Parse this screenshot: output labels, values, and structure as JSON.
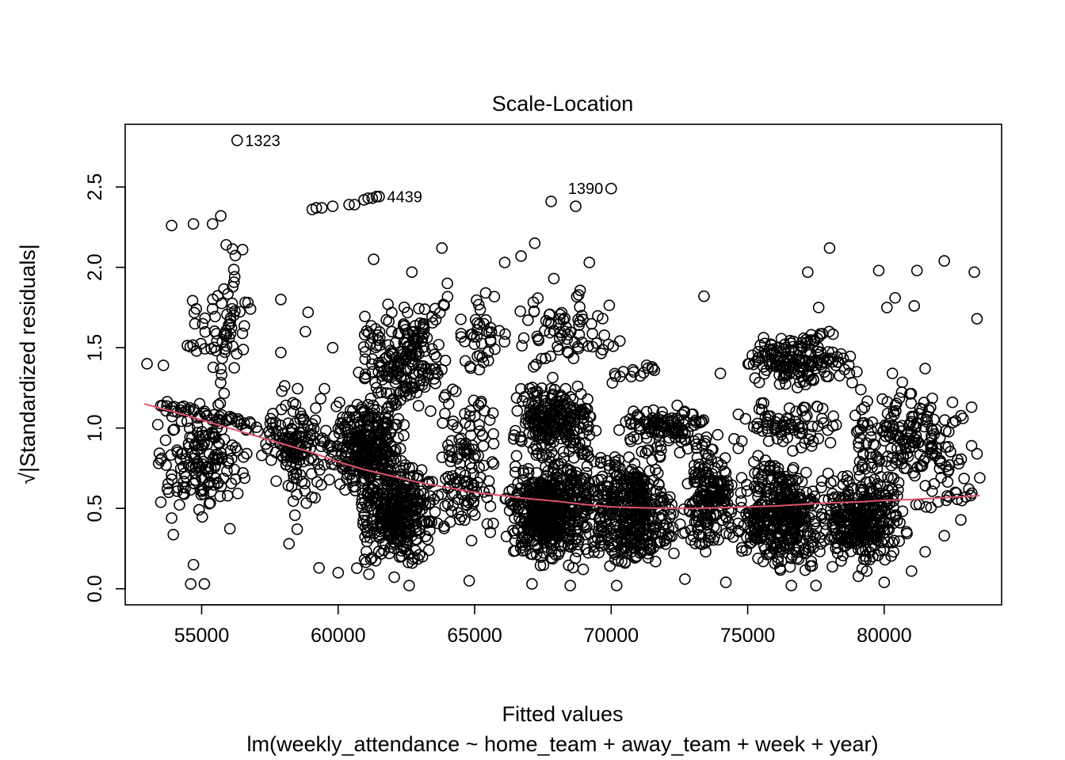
{
  "chart_data": {
    "type": "scatter",
    "title": "Scale-Location",
    "xlabel": "Fitted values",
    "ylabel": "√|Standardized residuals|",
    "subtitle": "lm(weekly_attendance ~ home_team + away_team + week + year)",
    "xlim": [
      52200,
      84300
    ],
    "ylim": [
      -0.1,
      2.89
    ],
    "x_ticks": [
      55000,
      60000,
      65000,
      70000,
      75000,
      80000
    ],
    "y_ticks": [
      0.0,
      0.5,
      1.0,
      1.5,
      2.0,
      2.5
    ],
    "x_tick_labels": [
      "55000",
      "60000",
      "65000",
      "70000",
      "75000",
      "80000"
    ],
    "y_tick_labels": [
      "0.0",
      "0.5",
      "1.0",
      "1.5",
      "2.0",
      "2.5"
    ],
    "point_color": "#000000",
    "smooth_color": "#DF536B",
    "labeled_points": [
      {
        "label": "1323",
        "x": 56300,
        "y": 2.79
      },
      {
        "label": "4439",
        "x": 61500,
        "y": 2.44
      },
      {
        "label": "1390",
        "x": 70000,
        "y": 2.49
      }
    ],
    "highlight_points": [
      [
        53900,
        2.26
      ],
      [
        54700,
        2.27
      ],
      [
        55400,
        2.27
      ],
      [
        55700,
        2.32
      ],
      [
        59050,
        2.36
      ],
      [
        59200,
        2.37
      ],
      [
        59400,
        2.37
      ],
      [
        59800,
        2.38
      ],
      [
        60400,
        2.39
      ],
      [
        60600,
        2.39
      ],
      [
        60950,
        2.42
      ],
      [
        61100,
        2.43
      ],
      [
        61250,
        2.43
      ],
      [
        61400,
        2.44
      ],
      [
        67800,
        2.41
      ],
      [
        68700,
        2.38
      ],
      [
        57900,
        1.8
      ],
      [
        55900,
        2.14
      ],
      [
        56500,
        2.11
      ],
      [
        58900,
        1.72
      ],
      [
        61300,
        2.05
      ],
      [
        62700,
        1.97
      ],
      [
        63800,
        2.12
      ],
      [
        64000,
        1.9
      ],
      [
        66100,
        2.03
      ],
      [
        66700,
        2.07
      ],
      [
        67200,
        2.15
      ],
      [
        67900,
        1.93
      ],
      [
        69200,
        2.03
      ],
      [
        73400,
        1.82
      ],
      [
        77200,
        1.97
      ],
      [
        78000,
        2.12
      ],
      [
        79800,
        1.98
      ],
      [
        81200,
        1.98
      ],
      [
        82200,
        2.04
      ],
      [
        83300,
        1.97
      ],
      [
        81100,
        1.76
      ],
      [
        80100,
        1.75
      ],
      [
        80400,
        1.81
      ],
      [
        83400,
        1.68
      ],
      [
        77600,
        1.75
      ],
      [
        53000,
        1.4
      ],
      [
        53600,
        1.39
      ],
      [
        57900,
        1.47
      ],
      [
        58800,
        1.6
      ],
      [
        59800,
        1.5
      ],
      [
        62000,
        1.18
      ],
      [
        63100,
        1.34
      ],
      [
        65500,
        1.42
      ],
      [
        66800,
        1.56
      ],
      [
        69900,
        1.52
      ],
      [
        71500,
        1.38
      ],
      [
        74000,
        1.34
      ],
      [
        75800,
        1.49
      ],
      [
        77000,
        1.5
      ],
      [
        78300,
        1.41
      ],
      [
        79000,
        1.35
      ],
      [
        80300,
        1.34
      ],
      [
        81500,
        1.37
      ],
      [
        82500,
        1.16
      ],
      [
        83200,
        1.13
      ],
      [
        53900,
        0.44
      ],
      [
        54700,
        0.15
      ],
      [
        54600,
        0.03
      ],
      [
        55100,
        0.03
      ],
      [
        58200,
        0.28
      ],
      [
        59300,
        0.13
      ],
      [
        60000,
        0.1
      ],
      [
        62600,
        0.02
      ],
      [
        64800,
        0.05
      ],
      [
        67100,
        0.03
      ],
      [
        68500,
        0.02
      ],
      [
        70200,
        0.02
      ],
      [
        72700,
        0.06
      ],
      [
        74200,
        0.04
      ],
      [
        76600,
        0.02
      ],
      [
        77500,
        0.02
      ],
      [
        80000,
        0.04
      ],
      [
        81000,
        0.11
      ],
      [
        81500,
        0.23
      ],
      [
        82200,
        0.33
      ],
      [
        82600,
        0.6
      ],
      [
        83100,
        0.62
      ],
      [
        83500,
        0.69
      ],
      [
        83200,
        0.89
      ],
      [
        83400,
        0.84
      ]
    ],
    "smooth_line": {
      "x": [
        52900,
        54000,
        55000,
        56000,
        57000,
        58000,
        59000,
        60000,
        61000,
        62000,
        63000,
        64000,
        65000,
        66000,
        67000,
        68000,
        69000,
        70000,
        71000,
        72000,
        73000,
        74000,
        75000,
        76000,
        77000,
        78000,
        79000,
        80000,
        81000,
        82000,
        83500
      ],
      "y": [
        1.15,
        1.1,
        1.05,
        1.0,
        0.95,
        0.9,
        0.85,
        0.79,
        0.74,
        0.7,
        0.66,
        0.63,
        0.6,
        0.58,
        0.56,
        0.545,
        0.525,
        0.51,
        0.505,
        0.5,
        0.5,
        0.505,
        0.51,
        0.515,
        0.525,
        0.535,
        0.54,
        0.55,
        0.555,
        0.565,
        0.58
      ]
    },
    "clusters": [
      {
        "xmin": 53200,
        "xmax": 56900,
        "ymin": 0.3,
        "ymax": 1.3,
        "n": 150,
        "seed": 11
      },
      {
        "xmin": 54200,
        "xmax": 57000,
        "ymin": 1.3,
        "ymax": 2.0,
        "n": 50,
        "seed": 12
      },
      {
        "xmin": 57000,
        "xmax": 59500,
        "ymin": 0.6,
        "ymax": 1.2,
        "n": 90,
        "seed": 13
      },
      {
        "xmin": 57500,
        "xmax": 60000,
        "ymin": 0.2,
        "ymax": 1.6,
        "n": 60,
        "seed": 14
      },
      {
        "xmin": 59500,
        "xmax": 62500,
        "ymin": 0.5,
        "ymax": 1.25,
        "n": 300,
        "seed": 15
      },
      {
        "xmin": 60500,
        "xmax": 63800,
        "ymin": 0.05,
        "ymax": 0.9,
        "n": 350,
        "seed": 16
      },
      {
        "xmin": 60500,
        "xmax": 64000,
        "ymin": 1.0,
        "ymax": 1.85,
        "n": 160,
        "seed": 17
      },
      {
        "xmin": 63500,
        "xmax": 66000,
        "ymin": 0.2,
        "ymax": 1.3,
        "n": 130,
        "seed": 18
      },
      {
        "xmin": 64000,
        "xmax": 66500,
        "ymin": 1.2,
        "ymax": 1.9,
        "n": 40,
        "seed": 19
      },
      {
        "xmin": 66000,
        "xmax": 69500,
        "ymin": 0.05,
        "ymax": 0.9,
        "n": 500,
        "seed": 20
      },
      {
        "xmin": 66200,
        "xmax": 69500,
        "ymin": 0.8,
        "ymax": 1.35,
        "n": 200,
        "seed": 21
      },
      {
        "xmin": 66500,
        "xmax": 70500,
        "ymin": 1.3,
        "ymax": 1.95,
        "n": 70,
        "seed": 22
      },
      {
        "xmin": 69000,
        "xmax": 72500,
        "ymin": 0.05,
        "ymax": 0.9,
        "n": 360,
        "seed": 23
      },
      {
        "xmin": 70000,
        "xmax": 73500,
        "ymin": 0.8,
        "ymax": 1.2,
        "n": 100,
        "seed": 24
      },
      {
        "xmin": 72500,
        "xmax": 74800,
        "ymin": 0.1,
        "ymax": 1.0,
        "n": 180,
        "seed": 25
      },
      {
        "xmin": 74500,
        "xmax": 78000,
        "ymin": 0.05,
        "ymax": 0.85,
        "n": 360,
        "seed": 26
      },
      {
        "xmin": 75000,
        "xmax": 79000,
        "ymin": 1.2,
        "ymax": 1.6,
        "n": 130,
        "seed": 27
      },
      {
        "xmin": 74500,
        "xmax": 78500,
        "ymin": 0.8,
        "ymax": 1.25,
        "n": 80,
        "seed": 28
      },
      {
        "xmin": 77500,
        "xmax": 81000,
        "ymin": 0.05,
        "ymax": 0.8,
        "n": 320,
        "seed": 29
      },
      {
        "xmin": 78500,
        "xmax": 82800,
        "ymin": 0.5,
        "ymax": 1.35,
        "n": 170,
        "seed": 30
      },
      {
        "xmin": 81000,
        "xmax": 83500,
        "ymin": 0.25,
        "ymax": 1.2,
        "n": 40,
        "seed": 31
      }
    ],
    "streaks": [
      {
        "x0": 53500,
        "y0": 1.15,
        "x1": 57000,
        "y1": 1.0,
        "n": 45,
        "seed": 41
      },
      {
        "x0": 55400,
        "y0": 0.7,
        "x1": 56200,
        "y1": 2.1,
        "n": 30,
        "seed": 42
      },
      {
        "x0": 62200,
        "y0": 1.4,
        "x1": 64000,
        "y1": 1.8,
        "n": 20,
        "seed": 43
      },
      {
        "x0": 62300,
        "y0": 1.65,
        "x1": 63200,
        "y1": 1.5,
        "n": 10,
        "seed": 44
      },
      {
        "x0": 62000,
        "y0": 1.15,
        "x1": 64000,
        "y1": 1.4,
        "n": 14,
        "seed": 45
      },
      {
        "x0": 67500,
        "y0": 1.05,
        "x1": 71200,
        "y1": 0.6,
        "n": 40,
        "seed": 46
      },
      {
        "x0": 66500,
        "y0": 0.95,
        "x1": 72000,
        "y1": 0.3,
        "n": 50,
        "seed": 47
      },
      {
        "x0": 70000,
        "y0": 1.3,
        "x1": 71600,
        "y1": 1.38,
        "n": 14,
        "seed": 48
      },
      {
        "x0": 71300,
        "y0": 1.06,
        "x1": 73500,
        "y1": 0.9,
        "n": 22,
        "seed": 49
      },
      {
        "x0": 75000,
        "y0": 1.42,
        "x1": 78000,
        "y1": 1.6,
        "n": 35,
        "seed": 50
      },
      {
        "x0": 75500,
        "y0": 0.85,
        "x1": 77000,
        "y1": 0.45,
        "n": 15,
        "seed": 51
      }
    ]
  }
}
